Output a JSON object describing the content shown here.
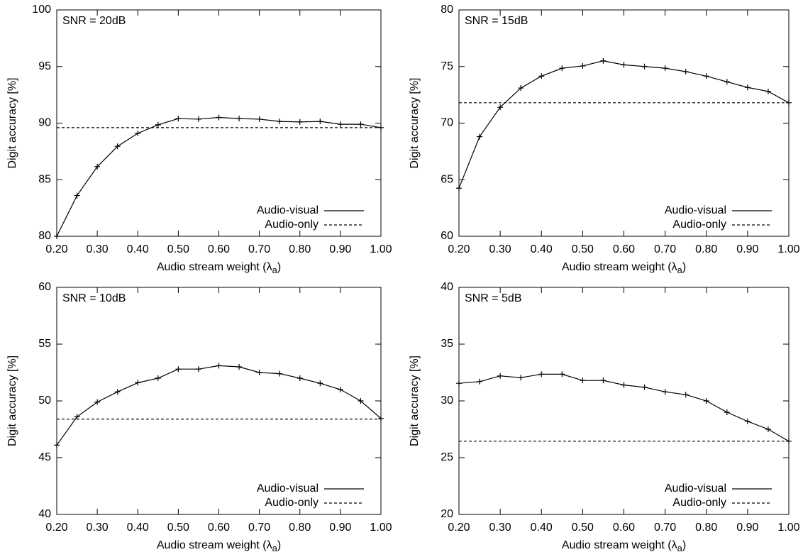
{
  "chart_data": [
    {
      "type": "line",
      "annotation": "SNR = 20dB",
      "xlabel": "Audio stream weight (λa)",
      "ylabel": "Digit accuracy [%]",
      "x": [
        0.2,
        0.25,
        0.3,
        0.35,
        0.4,
        0.45,
        0.5,
        0.55,
        0.6,
        0.65,
        0.7,
        0.75,
        0.8,
        0.85,
        0.9,
        0.95,
        1.0
      ],
      "series": [
        {
          "name": "Audio-visual",
          "color": "#000000",
          "linestyle": "solid",
          "marker": "+",
          "values": [
            80.0,
            83.6,
            86.15,
            87.95,
            89.1,
            89.85,
            90.4,
            90.35,
            90.5,
            90.4,
            90.35,
            90.15,
            90.1,
            90.15,
            89.9,
            89.9,
            89.6
          ]
        },
        {
          "name": "Audio-only",
          "color": "#000000",
          "linestyle": "dashed",
          "x": [
            0.2,
            1.0
          ],
          "values": [
            89.6,
            89.6
          ]
        }
      ],
      "xlim": [
        0.2,
        1.0
      ],
      "ylim": [
        80,
        100
      ],
      "xticks": [
        {
          "value": 0.2,
          "label": "0.20"
        },
        {
          "value": 0.3,
          "label": "0.30"
        },
        {
          "value": 0.4,
          "label": "0.40"
        },
        {
          "value": 0.5,
          "label": "0.50"
        },
        {
          "value": 0.6,
          "label": "0.60"
        },
        {
          "value": 0.7,
          "label": "0.70"
        },
        {
          "value": 0.8,
          "label": "0.80"
        },
        {
          "value": 0.9,
          "label": "0.90"
        },
        {
          "value": 1.0,
          "label": "1.00"
        }
      ],
      "yticks": [
        80,
        85,
        90,
        95,
        100
      ],
      "legend": "lower right"
    },
    {
      "type": "line",
      "annotation": "SNR = 15dB",
      "xlabel": "Audio stream weight (λa)",
      "ylabel": "Digit accuracy [%]",
      "x": [
        0.2,
        0.25,
        0.3,
        0.35,
        0.4,
        0.45,
        0.5,
        0.55,
        0.6,
        0.65,
        0.7,
        0.75,
        0.8,
        0.85,
        0.9,
        0.95,
        1.0
      ],
      "series": [
        {
          "name": "Audio-visual",
          "color": "#000000",
          "linestyle": "solid",
          "marker": "+",
          "values": [
            64.25,
            68.8,
            71.4,
            73.1,
            74.15,
            74.85,
            75.05,
            75.5,
            75.15,
            75.0,
            74.85,
            74.55,
            74.15,
            73.65,
            73.15,
            72.8,
            71.8
          ]
        },
        {
          "name": "Audio-only",
          "color": "#000000",
          "linestyle": "dashed",
          "x": [
            0.2,
            1.0
          ],
          "values": [
            71.8,
            71.8
          ]
        }
      ],
      "xlim": [
        0.2,
        1.0
      ],
      "ylim": [
        60,
        80
      ],
      "xticks": [
        {
          "value": 0.2,
          "label": "0.20"
        },
        {
          "value": 0.3,
          "label": "0.30"
        },
        {
          "value": 0.4,
          "label": "0.40"
        },
        {
          "value": 0.5,
          "label": "0.50"
        },
        {
          "value": 0.6,
          "label": "0.60"
        },
        {
          "value": 0.7,
          "label": "0.70"
        },
        {
          "value": 0.8,
          "label": "0.80"
        },
        {
          "value": 0.9,
          "label": "0.90"
        },
        {
          "value": 1.0,
          "label": "1.00"
        }
      ],
      "yticks": [
        60,
        65,
        70,
        75,
        80
      ],
      "legend": "lower right"
    },
    {
      "type": "line",
      "annotation": "SNR = 10dB",
      "xlabel": "Audio stream weight (λa)",
      "ylabel": "Digit accuracy [%]",
      "x": [
        0.2,
        0.25,
        0.3,
        0.35,
        0.4,
        0.45,
        0.5,
        0.55,
        0.6,
        0.65,
        0.7,
        0.75,
        0.8,
        0.85,
        0.9,
        0.95,
        1.0
      ],
      "series": [
        {
          "name": "Audio-visual",
          "color": "#000000",
          "linestyle": "solid",
          "marker": "+",
          "values": [
            46.1,
            48.6,
            49.9,
            50.8,
            51.6,
            52.0,
            52.8,
            52.8,
            53.1,
            53.0,
            52.5,
            52.4,
            52.0,
            51.55,
            51.0,
            50.0,
            48.45
          ]
        },
        {
          "name": "Audio-only",
          "color": "#000000",
          "linestyle": "dashed",
          "x": [
            0.2,
            1.0
          ],
          "values": [
            48.4,
            48.4
          ]
        }
      ],
      "xlim": [
        0.2,
        1.0
      ],
      "ylim": [
        40,
        60
      ],
      "xticks": [
        {
          "value": 0.2,
          "label": "0.20"
        },
        {
          "value": 0.3,
          "label": "0.30"
        },
        {
          "value": 0.4,
          "label": "0.40"
        },
        {
          "value": 0.5,
          "label": "0.50"
        },
        {
          "value": 0.6,
          "label": "0.60"
        },
        {
          "value": 0.7,
          "label": "0.70"
        },
        {
          "value": 0.8,
          "label": "0.80"
        },
        {
          "value": 0.9,
          "label": "0.90"
        },
        {
          "value": 1.0,
          "label": "1.00"
        }
      ],
      "yticks": [
        40,
        45,
        50,
        55,
        60
      ],
      "legend": "lower right"
    },
    {
      "type": "line",
      "annotation": "SNR = 5dB",
      "xlabel": "Audio stream weight (λa)",
      "ylabel": "Digit accuracy [%]",
      "x": [
        0.2,
        0.25,
        0.3,
        0.35,
        0.4,
        0.45,
        0.5,
        0.55,
        0.6,
        0.65,
        0.7,
        0.75,
        0.8,
        0.85,
        0.9,
        0.95,
        1.0
      ],
      "series": [
        {
          "name": "Audio-visual",
          "color": "#000000",
          "linestyle": "solid",
          "marker": "+",
          "values": [
            31.55,
            31.7,
            32.2,
            32.05,
            32.35,
            32.35,
            31.8,
            31.8,
            31.4,
            31.2,
            30.8,
            30.55,
            30.0,
            29.0,
            28.2,
            27.5,
            26.45
          ]
        },
        {
          "name": "Audio-only",
          "color": "#000000",
          "linestyle": "dashed",
          "x": [
            0.2,
            1.0
          ],
          "values": [
            26.45,
            26.45
          ]
        }
      ],
      "xlim": [
        0.2,
        1.0
      ],
      "ylim": [
        20,
        40
      ],
      "xticks": [
        {
          "value": 0.2,
          "label": "0.20"
        },
        {
          "value": 0.3,
          "label": "0.30"
        },
        {
          "value": 0.4,
          "label": "0.40"
        },
        {
          "value": 0.5,
          "label": "0.50"
        },
        {
          "value": 0.6,
          "label": "0.60"
        },
        {
          "value": 0.7,
          "label": "0.70"
        },
        {
          "value": 0.8,
          "label": "0.80"
        },
        {
          "value": 0.9,
          "label": "0.90"
        },
        {
          "value": 1.0,
          "label": "1.00"
        }
      ],
      "yticks": [
        20,
        25,
        30,
        35,
        40
      ],
      "legend": "lower right"
    }
  ]
}
